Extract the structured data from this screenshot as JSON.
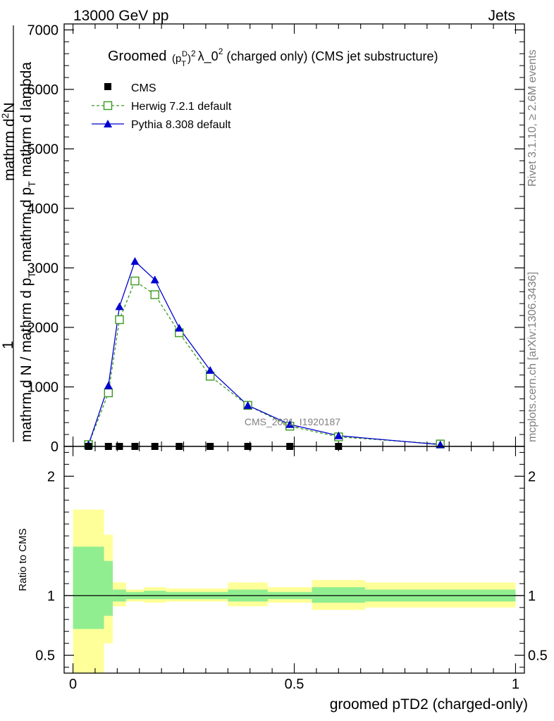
{
  "header": {
    "energy": "13000 GeV pp",
    "category": "Jets"
  },
  "side": {
    "rivet": "Rivet 3.1.10, ≥ 2.6M events",
    "site": "mcplots.cern.ch [arXiv:1306.3436]"
  },
  "watermark": "CMS_2021_I1920187",
  "main_ylabel": {
    "one": "1",
    "bottom": "mathrm d N / mathrm d p",
    "bottom_sub": "T",
    "top": "mathrm d",
    "top_sup": "2",
    "top_rest": "N",
    "mid": "mathrm d p",
    "mid_sub": "T",
    "mid_rest": " mathrm d lambda"
  },
  "ratio_ylabel": "Ratio to CMS",
  "xlabel": "groomed pTD2 (charged-only)",
  "legend": {
    "title_pre": "Groomed",
    "title_mid": "λ_0",
    "title_post": "  (charged only) (CMS jet substructure)",
    "title_p": "p",
    "title_T": "T",
    "title_D": "D",
    "title_sq": "2",
    "entries": [
      {
        "label": "CMS",
        "color": "#000000",
        "marker": "square-filled"
      },
      {
        "label": "Herwig 7.2.1 default",
        "color": "#3a9a1e",
        "marker": "square-open"
      },
      {
        "label": "Pythia 8.308 default",
        "color": "#0000d0",
        "marker": "triangle-filled"
      }
    ]
  },
  "chart_data": [
    {
      "type": "line",
      "xlim": [
        -0.02,
        1.02
      ],
      "ylim": [
        0,
        7100
      ],
      "yticks": [
        0,
        1000,
        2000,
        3000,
        4000,
        5000,
        6000,
        7000
      ],
      "ytick_labels": [
        "0",
        "1000",
        "2000",
        "3000",
        "4000",
        "5000",
        "6000",
        "7000"
      ],
      "series": [
        {
          "name": "CMS",
          "x": [
            0.035,
            0.08,
            0.105,
            0.14,
            0.185,
            0.24,
            0.31,
            0.395,
            0.49,
            0.6
          ],
          "values": [
            0,
            0,
            0,
            0,
            0,
            0,
            0,
            0,
            0,
            0
          ]
        },
        {
          "name": "Herwig 7.2.1 default",
          "x": [
            0.035,
            0.08,
            0.105,
            0.14,
            0.185,
            0.24,
            0.31,
            0.395,
            0.49,
            0.6,
            0.83
          ],
          "values": [
            30,
            900,
            2130,
            2780,
            2550,
            1910,
            1180,
            690,
            340,
            160,
            40
          ]
        },
        {
          "name": "Pythia 8.308 default",
          "x": [
            0.035,
            0.08,
            0.105,
            0.14,
            0.185,
            0.24,
            0.31,
            0.395,
            0.49,
            0.6,
            0.83
          ],
          "values": [
            30,
            1020,
            2350,
            3110,
            2800,
            1990,
            1280,
            690,
            370,
            180,
            30
          ]
        }
      ]
    },
    {
      "type": "area",
      "xlim": [
        -0.02,
        1.02
      ],
      "ylim": [
        0.35,
        2.25
      ],
      "yticks": [
        0.5,
        1,
        2
      ],
      "ytick_labels": [
        "0.5",
        "1",
        "2"
      ],
      "xticks": [
        0,
        0.5,
        1
      ],
      "xtick_labels": [
        "0",
        "0.5",
        "1"
      ],
      "reference_line": 1,
      "bins": [
        {
          "x0": 0.0,
          "x1": 0.07,
          "y_inner": [
            0.72,
            1.41
          ],
          "y_outer": [
            0.35,
            1.72
          ]
        },
        {
          "x0": 0.07,
          "x1": 0.09,
          "y_inner": [
            0.83,
            1.29
          ],
          "y_outer": [
            0.6,
            1.51
          ]
        },
        {
          "x0": 0.09,
          "x1": 0.12,
          "y_inner": [
            0.95,
            1.05
          ],
          "y_outer": [
            0.91,
            1.11
          ]
        },
        {
          "x0": 0.12,
          "x1": 0.16,
          "y_inner": [
            0.97,
            1.03
          ],
          "y_outer": [
            0.95,
            1.05
          ]
        },
        {
          "x0": 0.16,
          "x1": 0.21,
          "y_inner": [
            0.97,
            1.04
          ],
          "y_outer": [
            0.94,
            1.07
          ]
        },
        {
          "x0": 0.21,
          "x1": 0.35,
          "y_inner": [
            0.97,
            1.03
          ],
          "y_outer": [
            0.95,
            1.06
          ]
        },
        {
          "x0": 0.35,
          "x1": 0.44,
          "y_inner": [
            0.95,
            1.05
          ],
          "y_outer": [
            0.91,
            1.11
          ]
        },
        {
          "x0": 0.44,
          "x1": 0.54,
          "y_inner": [
            0.97,
            1.03
          ],
          "y_outer": [
            0.94,
            1.07
          ]
        },
        {
          "x0": 0.54,
          "x1": 0.66,
          "y_inner": [
            0.94,
            1.07
          ],
          "y_outer": [
            0.88,
            1.13
          ]
        },
        {
          "x0": 0.66,
          "x1": 1.0,
          "y_inner": [
            0.95,
            1.05
          ],
          "y_outer": [
            0.9,
            1.11
          ]
        }
      ],
      "colors": {
        "inner": "#90ee90",
        "outer": "#ffff99"
      }
    }
  ]
}
